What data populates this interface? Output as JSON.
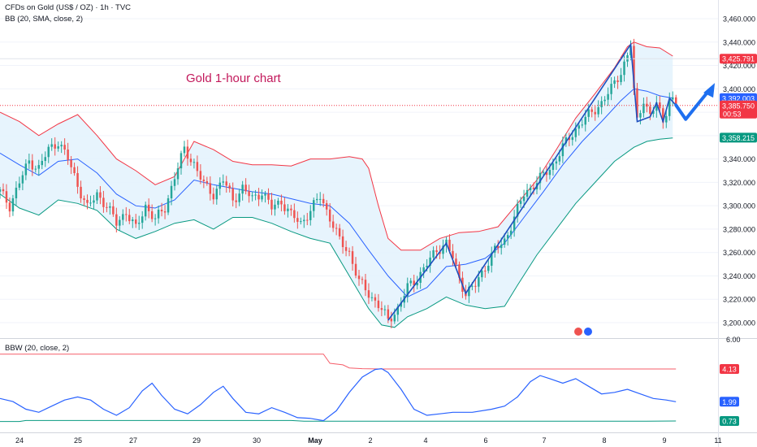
{
  "header": {
    "symbol_line": "CFDs on Gold (US$ / OZ) · 1h · TVC",
    "bb_line": "BB (20, SMA, close, 2)"
  },
  "annotation": "Gold 1-hour chart",
  "indicator_label": "BBW (20, close, 2)",
  "colors": {
    "bull": "#26a69a",
    "bear": "#ef5350",
    "upper_band": "#f23645",
    "basis": "#2962ff",
    "lower_band": "#089981",
    "band_fill": "#e3f2fd",
    "trend": "#1e4fbf",
    "arrow": "#1e6ff0",
    "bbw_line": "#2962ff",
    "bbw_upper": "#f23645",
    "bbw_lower": "#089981",
    "axis_text": "#131722",
    "grid": "#f0f3fa"
  },
  "chart_data": [
    {
      "type": "candlestick",
      "title": "CFDs on Gold (US$ / OZ) · 1h · TVC",
      "indicator": "BB (20, SMA, close, 2)",
      "x_ticks": [
        "24",
        "25",
        "27",
        "29",
        "30",
        "May",
        "2",
        "4",
        "6",
        "7",
        "8",
        "9",
        "11"
      ],
      "y_ticks": [
        "3,200.000",
        "3,220.000",
        "3,240.000",
        "3,260.000",
        "3,280.000",
        "3,300.000",
        "3,320.000",
        "3,340.000",
        "3,360.000",
        "3,380.000",
        "3,400.000",
        "3,420.000",
        "3,440.000",
        "3,460.000"
      ],
      "ylim": [
        3190,
        3466
      ],
      "price_labels": [
        {
          "value": 3425.791,
          "text": "3,425.791",
          "color": "#f23645"
        },
        {
          "value": 3392.003,
          "text": "3,392.003",
          "color": "#2962ff"
        },
        {
          "value": 3385.75,
          "text": "3,385.750",
          "sub": "00:53",
          "color": "#f23645"
        },
        {
          "value": 3358.215,
          "text": "3,358.215",
          "color": "#089981"
        }
      ],
      "last_price": 3385.75,
      "close_path": [
        [
          0,
          3312
        ],
        [
          3,
          3300
        ],
        [
          6,
          3320
        ],
        [
          9,
          3338
        ],
        [
          12,
          3332
        ],
        [
          15,
          3348
        ],
        [
          18,
          3355
        ],
        [
          21,
          3340
        ],
        [
          24,
          3318
        ],
        [
          27,
          3298
        ],
        [
          30,
          3310
        ],
        [
          33,
          3300
        ],
        [
          36,
          3285
        ],
        [
          39,
          3295
        ],
        [
          42,
          3280
        ],
        [
          45,
          3300
        ],
        [
          48,
          3288
        ],
        [
          51,
          3298
        ],
        [
          54,
          3325
        ],
        [
          57,
          3348
        ],
        [
          60,
          3336
        ],
        [
          63,
          3318
        ],
        [
          66,
          3310
        ],
        [
          69,
          3322
        ],
        [
          72,
          3305
        ],
        [
          75,
          3315
        ],
        [
          78,
          3306
        ],
        [
          81,
          3312
        ],
        [
          84,
          3298
        ],
        [
          87,
          3304
        ],
        [
          90,
          3292
        ],
        [
          93,
          3285
        ],
        [
          96,
          3296
        ],
        [
          99,
          3308
        ],
        [
          102,
          3290
        ],
        [
          105,
          3270
        ],
        [
          108,
          3260
        ],
        [
          111,
          3235
        ],
        [
          114,
          3225
        ],
        [
          117,
          3215
        ],
        [
          120,
          3202
        ],
        [
          123,
          3212
        ],
        [
          126,
          3230
        ],
        [
          129,
          3238
        ],
        [
          132,
          3250
        ],
        [
          135,
          3262
        ],
        [
          138,
          3268
        ],
        [
          140,
          3255
        ],
        [
          142,
          3238
        ],
        [
          144,
          3225
        ],
        [
          147,
          3232
        ],
        [
          150,
          3248
        ],
        [
          153,
          3262
        ],
        [
          156,
          3270
        ],
        [
          159,
          3290
        ],
        [
          162,
          3310
        ],
        [
          165,
          3318
        ],
        [
          168,
          3326
        ],
        [
          171,
          3335
        ],
        [
          174,
          3350
        ],
        [
          177,
          3362
        ],
        [
          180,
          3372
        ],
        [
          183,
          3380
        ],
        [
          186,
          3388
        ],
        [
          189,
          3400
        ],
        [
          192,
          3415
        ],
        [
          194,
          3428
        ],
        [
          195,
          3438
        ],
        [
          196,
          3398
        ],
        [
          197,
          3372
        ],
        [
          199,
          3392
        ],
        [
          201,
          3376
        ],
        [
          203,
          3388
        ],
        [
          205,
          3372
        ],
        [
          207,
          3392
        ],
        [
          209,
          3386
        ]
      ],
      "upper_band_path": [
        [
          0,
          3380
        ],
        [
          6,
          3372
        ],
        [
          12,
          3360
        ],
        [
          18,
          3370
        ],
        [
          24,
          3378
        ],
        [
          30,
          3360
        ],
        [
          36,
          3340
        ],
        [
          42,
          3330
        ],
        [
          48,
          3318
        ],
        [
          54,
          3325
        ],
        [
          60,
          3355
        ],
        [
          66,
          3348
        ],
        [
          72,
          3338
        ],
        [
          78,
          3335
        ],
        [
          84,
          3335
        ],
        [
          90,
          3334
        ],
        [
          96,
          3340
        ],
        [
          102,
          3340
        ],
        [
          108,
          3342
        ],
        [
          112,
          3340
        ],
        [
          114,
          3332
        ],
        [
          117,
          3300
        ],
        [
          120,
          3272
        ],
        [
          124,
          3262
        ],
        [
          130,
          3262
        ],
        [
          136,
          3272
        ],
        [
          142,
          3277
        ],
        [
          148,
          3278
        ],
        [
          154,
          3282
        ],
        [
          160,
          3302
        ],
        [
          166,
          3322
        ],
        [
          172,
          3348
        ],
        [
          178,
          3375
        ],
        [
          184,
          3396
        ],
        [
          190,
          3418
        ],
        [
          194,
          3436
        ],
        [
          196,
          3440
        ],
        [
          200,
          3436
        ],
        [
          204,
          3435
        ],
        [
          208,
          3428
        ]
      ],
      "basis_path": [
        [
          0,
          3345
        ],
        [
          6,
          3335
        ],
        [
          12,
          3326
        ],
        [
          18,
          3338
        ],
        [
          24,
          3340
        ],
        [
          30,
          3328
        ],
        [
          36,
          3310
        ],
        [
          42,
          3300
        ],
        [
          48,
          3298
        ],
        [
          54,
          3305
        ],
        [
          60,
          3322
        ],
        [
          66,
          3318
        ],
        [
          72,
          3315
        ],
        [
          78,
          3312
        ],
        [
          84,
          3310
        ],
        [
          90,
          3306
        ],
        [
          96,
          3302
        ],
        [
          102,
          3300
        ],
        [
          108,
          3285
        ],
        [
          114,
          3262
        ],
        [
          120,
          3240
        ],
        [
          126,
          3222
        ],
        [
          132,
          3230
        ],
        [
          138,
          3248
        ],
        [
          144,
          3250
        ],
        [
          150,
          3255
        ],
        [
          156,
          3268
        ],
        [
          162,
          3290
        ],
        [
          168,
          3312
        ],
        [
          174,
          3335
        ],
        [
          180,
          3355
        ],
        [
          186,
          3372
        ],
        [
          192,
          3390
        ],
        [
          196,
          3400
        ],
        [
          200,
          3398
        ],
        [
          204,
          3394
        ],
        [
          208,
          3392
        ]
      ],
      "lower_band_path": [
        [
          0,
          3310
        ],
        [
          6,
          3298
        ],
        [
          12,
          3292
        ],
        [
          18,
          3305
        ],
        [
          24,
          3302
        ],
        [
          30,
          3296
        ],
        [
          36,
          3280
        ],
        [
          42,
          3272
        ],
        [
          48,
          3278
        ],
        [
          54,
          3285
        ],
        [
          60,
          3288
        ],
        [
          66,
          3280
        ],
        [
          72,
          3290
        ],
        [
          78,
          3290
        ],
        [
          84,
          3285
        ],
        [
          90,
          3278
        ],
        [
          96,
          3272
        ],
        [
          102,
          3268
        ],
        [
          108,
          3240
        ],
        [
          114,
          3212
        ],
        [
          118,
          3198
        ],
        [
          122,
          3196
        ],
        [
          126,
          3205
        ],
        [
          132,
          3212
        ],
        [
          138,
          3222
        ],
        [
          144,
          3215
        ],
        [
          150,
          3212
        ],
        [
          156,
          3214
        ],
        [
          160,
          3232
        ],
        [
          166,
          3258
        ],
        [
          172,
          3280
        ],
        [
          178,
          3302
        ],
        [
          184,
          3320
        ],
        [
          190,
          3338
        ],
        [
          196,
          3350
        ],
        [
          200,
          3355
        ],
        [
          204,
          3357
        ],
        [
          208,
          3358
        ]
      ],
      "trendline_path": [
        [
          120,
          3202
        ],
        [
          138,
          3268
        ],
        [
          144,
          3225
        ],
        [
          195,
          3438
        ],
        [
          197,
          3372
        ],
        [
          201,
          3376
        ],
        [
          203,
          3388
        ],
        [
          205,
          3372
        ],
        [
          207,
          3392
        ],
        [
          209,
          3386
        ]
      ],
      "projection_arrow_path": [
        [
          209,
          3386
        ],
        [
          212,
          3374
        ],
        [
          219,
          3398
        ]
      ],
      "x_index_max": 222
    },
    {
      "type": "line",
      "indicator": "BBW (20, close, 2)",
      "y_ticks": [
        "6.00"
      ],
      "ylim": [
        0.6,
        6.0
      ],
      "price_labels": [
        {
          "value": 4.13,
          "text": "4.13",
          "color": "#f23645"
        },
        {
          "value": 1.99,
          "text": "1.99",
          "color": "#2962ff"
        },
        {
          "value": 0.73,
          "text": "0.73",
          "color": "#089981"
        }
      ],
      "bbw_path": [
        [
          0,
          2.2
        ],
        [
          4,
          2.0
        ],
        [
          8,
          1.5
        ],
        [
          12,
          1.3
        ],
        [
          16,
          1.7
        ],
        [
          20,
          2.1
        ],
        [
          24,
          2.3
        ],
        [
          28,
          2.1
        ],
        [
          32,
          1.5
        ],
        [
          36,
          1.1
        ],
        [
          40,
          1.6
        ],
        [
          44,
          2.7
        ],
        [
          47,
          3.2
        ],
        [
          50,
          2.4
        ],
        [
          54,
          1.5
        ],
        [
          58,
          1.2
        ],
        [
          62,
          1.8
        ],
        [
          66,
          2.6
        ],
        [
          69,
          3.0
        ],
        [
          72,
          2.2
        ],
        [
          76,
          1.3
        ],
        [
          80,
          1.2
        ],
        [
          84,
          1.6
        ],
        [
          88,
          1.3
        ],
        [
          92,
          0.95
        ],
        [
          96,
          0.9
        ],
        [
          100,
          0.75
        ],
        [
          104,
          1.4
        ],
        [
          108,
          2.6
        ],
        [
          112,
          3.6
        ],
        [
          116,
          4.1
        ],
        [
          118,
          4.15
        ],
        [
          120,
          3.9
        ],
        [
          124,
          2.8
        ],
        [
          128,
          1.5
        ],
        [
          132,
          1.1
        ],
        [
          136,
          1.2
        ],
        [
          140,
          1.3
        ],
        [
          146,
          1.3
        ],
        [
          152,
          1.5
        ],
        [
          156,
          1.7
        ],
        [
          160,
          2.3
        ],
        [
          164,
          3.3
        ],
        [
          167,
          3.7
        ],
        [
          170,
          3.5
        ],
        [
          174,
          3.2
        ],
        [
          178,
          3.5
        ],
        [
          182,
          3.0
        ],
        [
          186,
          2.5
        ],
        [
          190,
          2.6
        ],
        [
          194,
          2.8
        ],
        [
          198,
          2.5
        ],
        [
          202,
          2.2
        ],
        [
          206,
          2.1
        ],
        [
          209,
          1.99
        ]
      ],
      "highest_path": [
        [
          0,
          5.1
        ],
        [
          100,
          5.1
        ],
        [
          102,
          4.5
        ],
        [
          106,
          4.4
        ],
        [
          108,
          4.2
        ],
        [
          112,
          4.15
        ],
        [
          118,
          4.13
        ],
        [
          209,
          4.13
        ]
      ],
      "lowest_path": [
        [
          0,
          0.7
        ],
        [
          6,
          0.7
        ],
        [
          8,
          0.76
        ],
        [
          90,
          0.76
        ],
        [
          94,
          0.72
        ],
        [
          108,
          0.72
        ],
        [
          200,
          0.72
        ],
        [
          209,
          0.73
        ]
      ]
    }
  ]
}
